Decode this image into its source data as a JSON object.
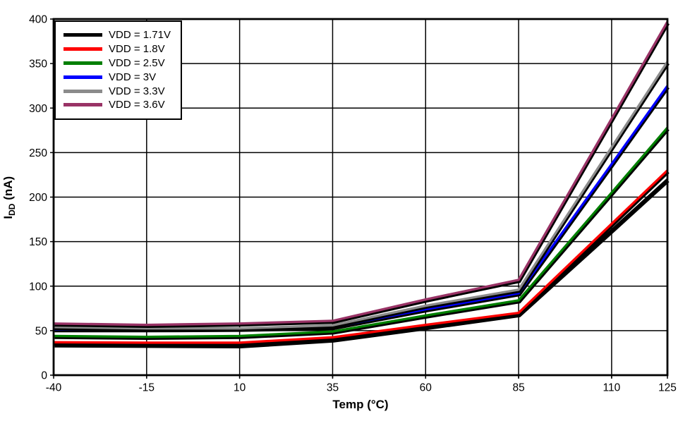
{
  "chart_data": {
    "type": "line",
    "title": "",
    "xlabel": "Temp (°C)",
    "ylabel": "IDD (nA)",
    "ylabel_parts": {
      "base": "I",
      "sub": "DD",
      "rest": " (nA)"
    },
    "x": [
      -40,
      -15,
      10,
      35,
      60,
      85,
      110,
      125
    ],
    "xlim": [
      -40,
      125
    ],
    "ylim": [
      0,
      400
    ],
    "xticks": [
      -40,
      -15,
      10,
      35,
      60,
      85,
      110,
      125
    ],
    "yticks": [
      0,
      50,
      100,
      150,
      200,
      250,
      300,
      350,
      400
    ],
    "grid": true,
    "grid_color": "#000000",
    "axis_color": "#000000",
    "background_color": "#ffffff",
    "legend_position": "top-left",
    "line_shadow": true,
    "series": [
      {
        "name": "VDD = 1.71V",
        "color": "#000000",
        "values": [
          34.5,
          34,
          33.5,
          40,
          54,
          68.5,
          163,
          220
        ]
      },
      {
        "name": "VDD = 1.8V",
        "color": "#ff0000",
        "values": [
          37,
          36.5,
          36.5,
          42.5,
          56.5,
          70,
          170,
          230
        ]
      },
      {
        "name": "VDD = 2.5V",
        "color": "#007f00",
        "values": [
          44,
          43,
          44,
          49,
          67,
          84,
          205,
          278
        ]
      },
      {
        "name": "VDD = 3V",
        "color": "#0000ff",
        "values": [
          51.5,
          51.5,
          52,
          54,
          74,
          92,
          237,
          325
        ]
      },
      {
        "name": "VDD = 3.3V",
        "color": "#8b8b8b",
        "values": [
          54,
          52.5,
          52.5,
          56,
          78,
          96,
          256,
          352
        ]
      },
      {
        "name": "VDD = 3.6V",
        "color": "#993366",
        "values": [
          58,
          56.5,
          58,
          61,
          85,
          107,
          288,
          397
        ]
      }
    ]
  }
}
